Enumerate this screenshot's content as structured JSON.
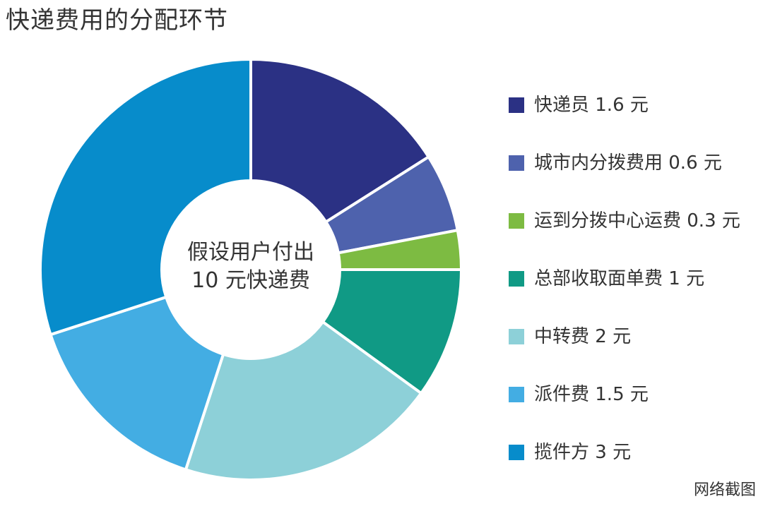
{
  "chart_data": {
    "type": "pie",
    "title": "快递费用的分配环节",
    "center_text": [
      "假设用户付出",
      "10 元快递费"
    ],
    "legend_position": "right",
    "slices": [
      {
        "label": "快递员 1.6 元",
        "value": 1.6,
        "color": "#2b3184"
      },
      {
        "label": "城市内分拨费用 0.6 元",
        "value": 0.6,
        "color": "#4e62ad"
      },
      {
        "label": "运到分拨中心运费 0.3 元",
        "value": 0.3,
        "color": "#7dbb42"
      },
      {
        "label": "总部收取面单费 1 元",
        "value": 1,
        "color": "#109a85"
      },
      {
        "label": "中转费 2 元",
        "value": 2,
        "color": "#8dd0d8"
      },
      {
        "label": "派件费 1.5 元",
        "value": 1.5,
        "color": "#43ade3"
      },
      {
        "label": "揽件方 3 元",
        "value": 3,
        "color": "#078ccb"
      }
    ]
  },
  "watermark": "网络截图"
}
